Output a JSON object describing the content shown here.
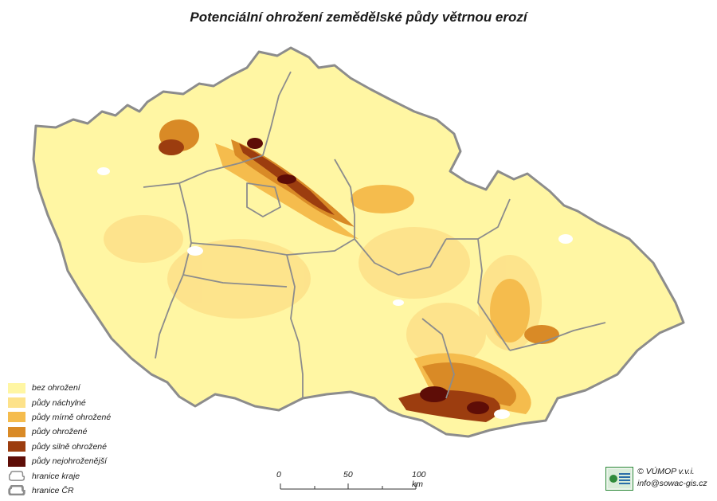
{
  "title": "Potenciální ohrožení zemědělské půdy větrnou erozí",
  "legend": {
    "items": [
      {
        "label": "bez ohrožení",
        "color": "#fff6a3"
      },
      {
        "label": "půdy náchylné",
        "color": "#fde28a"
      },
      {
        "label": "půdy mírně ohrožené",
        "color": "#f5bc4d"
      },
      {
        "label": "půdy ohrožené",
        "color": "#d98a26"
      },
      {
        "label": "půdy silně ohrožené",
        "color": "#9c3d0f"
      },
      {
        "label": "půdy nejohroženější",
        "color": "#5e0d07"
      },
      {
        "label": "hranice kraje",
        "color": "#8c8c8c"
      },
      {
        "label": "hranice ČR",
        "color": "#8c8c8c"
      }
    ]
  },
  "scale": {
    "ticks": [
      "0",
      "50",
      "100 km"
    ]
  },
  "credit": {
    "line1": "© VÚMOP v.v.i.",
    "line2": "info@sowac-gis.cz"
  }
}
